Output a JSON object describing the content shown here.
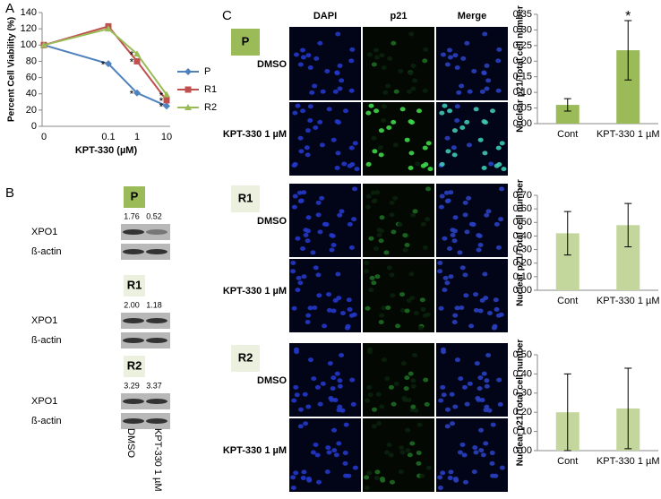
{
  "panel_labels": [
    "A",
    "B",
    "C"
  ],
  "chart_data": [
    {
      "type": "line",
      "xlabel": "KPT-330 (µM)",
      "ylabel": "Percent Cell Viability (%)",
      "categories": [
        "0",
        "0.1",
        "1",
        "10"
      ],
      "series": [
        {
          "name": "P",
          "color": "#4f81bd",
          "marker": "diamond",
          "values": [
            100,
            77,
            41,
            25
          ]
        },
        {
          "name": "R1",
          "color": "#c0504d",
          "marker": "square",
          "values": [
            100,
            123,
            80,
            32
          ]
        },
        {
          "name": "R2",
          "color": "#9bbb59",
          "marker": "triangle",
          "values": [
            100,
            120,
            89,
            39
          ]
        }
      ],
      "ylim": [
        0,
        140
      ],
      "yticks": [
        0,
        20,
        40,
        60,
        80,
        100,
        120,
        140
      ],
      "legend": "right",
      "annotations": [
        {
          "text": "*",
          "x": "0.1",
          "y": 77
        },
        {
          "text": "*",
          "x": "1",
          "y": 41
        },
        {
          "text": "*",
          "x": "1",
          "y": 80
        },
        {
          "text": "*",
          "x": "1",
          "y": 89
        },
        {
          "text": "*",
          "x": "10",
          "y": 25
        },
        {
          "text": "*",
          "x": "10",
          "y": 32
        },
        {
          "text": "*",
          "x": "10",
          "y": 39
        }
      ]
    },
    {
      "type": "bar",
      "ylabel": "Nuclear p21/Total cell number",
      "categories": [
        "Cont",
        "KPT-330 1 µM"
      ],
      "values": [
        0.06,
        0.235
      ],
      "errors": [
        0.02,
        0.095
      ],
      "color": "#9bbb59",
      "ylim": [
        0,
        0.35
      ],
      "yticks": [
        {
          "value": 0,
          "label": "0.00"
        },
        0.05,
        {
          "value": 0.1,
          "label": "0.10"
        },
        0.15,
        {
          "value": 0.2,
          "label": "0.20"
        },
        0.25,
        {
          "value": 0.3,
          "label": "0.30"
        },
        0.35
      ],
      "annotations": [
        {
          "text": "*",
          "x": "KPT-330 1 µM"
        }
      ]
    },
    {
      "type": "bar",
      "ylabel": "Nuclear p21/Total cell number",
      "categories": [
        "Cont",
        "KPT-330 1 µM"
      ],
      "values": [
        0.42,
        0.48
      ],
      "errors": [
        0.16,
        0.16
      ],
      "color": "#c3d69b",
      "ylim": [
        0,
        0.7
      ],
      "yticks": [
        {
          "value": 0,
          "label": "0.00"
        },
        {
          "value": 0.1,
          "label": "0.10"
        },
        {
          "value": 0.2,
          "label": "0.20"
        },
        {
          "value": 0.3,
          "label": "0.30"
        },
        {
          "value": 0.4,
          "label": "0.40"
        },
        {
          "value": 0.5,
          "label": "0.50"
        },
        {
          "value": 0.6,
          "label": "0.60"
        },
        {
          "value": 0.7,
          "label": "0.70"
        }
      ]
    },
    {
      "type": "bar",
      "ylabel": "Nuclear p21/Total cell number",
      "categories": [
        "Cont",
        "KPT-330 1 µM"
      ],
      "values": [
        0.2,
        0.22
      ],
      "errors": [
        0.2,
        0.21
      ],
      "color": "#c3d69b",
      "ylim": [
        0,
        0.5
      ],
      "yticks": [
        {
          "value": 0,
          "label": "0.00"
        },
        {
          "value": 0.1,
          "label": "0.10"
        },
        {
          "value": 0.2,
          "label": "0.20"
        },
        {
          "value": 0.3,
          "label": "0.30"
        },
        {
          "value": 0.4,
          "label": "0.40"
        },
        {
          "value": 0.5,
          "label": "0.50"
        }
      ]
    }
  ],
  "blots": {
    "lanes": [
      "DMSO",
      "KPT-330 1 µM"
    ],
    "groups": [
      {
        "label": "P",
        "quantities": [
          "1.76",
          "0.52"
        ],
        "rows": [
          "XPO1",
          "ß-actin"
        ]
      },
      {
        "label": "R1",
        "quantities": [
          "2.00",
          "1.18"
        ],
        "rows": [
          "XPO1",
          "ß-actin"
        ]
      },
      {
        "label": "R2",
        "quantities": [
          "3.29",
          "3.37"
        ],
        "rows": [
          "XPO1",
          "ß-actin"
        ]
      }
    ]
  },
  "microscopy": {
    "columns": [
      "DAPI",
      "p21",
      "Merge"
    ],
    "groups": [
      {
        "label": "P",
        "rows": [
          "DMSO",
          "KPT-330 1 µM"
        ]
      },
      {
        "label": "R1",
        "rows": [
          "DMSO",
          "KPT-330 1 µM"
        ]
      },
      {
        "label": "R2",
        "rows": [
          "DMSO",
          "KPT-330 1 µM"
        ]
      }
    ]
  }
}
